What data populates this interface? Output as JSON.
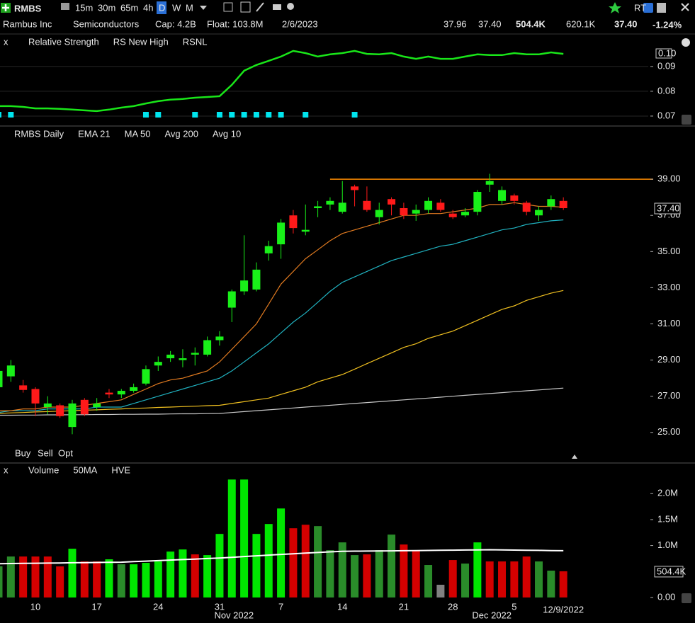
{
  "toolbar": {
    "symbol": "RMBS",
    "intervals": [
      "15m",
      "30m",
      "65m",
      "4h",
      "D",
      "W",
      "M"
    ],
    "active_interval": 4,
    "rt": "RT"
  },
  "info": {
    "name": "Rambus Inc",
    "sector": "Semiconductors",
    "cap": "Cap: 4.2B",
    "float": "Float: 103.8M",
    "date": "2/6/2023",
    "fields": [
      "37.96",
      "37.40",
      "504.4K",
      "620.1K"
    ],
    "last": "37.40",
    "change": "-1.24%"
  },
  "order_buttons": [
    "Buy",
    "Sell",
    "Opt"
  ],
  "chart_data": [
    {
      "type": "line",
      "close_label": "x",
      "series": [
        {
          "name": "Relative Strength",
          "color": "#19e619",
          "values": [
            0.074,
            0.074,
            0.0737,
            0.0731,
            0.0731,
            0.0729,
            0.0726,
            0.0723,
            0.072,
            0.0726,
            0.0734,
            0.074,
            0.0751,
            0.076,
            0.0766,
            0.0769,
            0.0774,
            0.0777,
            0.078,
            0.0826,
            0.0883,
            0.0906,
            0.0923,
            0.094,
            0.0963,
            0.0954,
            0.094,
            0.0949,
            0.0954,
            0.0963,
            0.0951,
            0.0949,
            0.0954,
            0.094,
            0.0931,
            0.094,
            0.0931,
            0.0931,
            0.094,
            0.0949,
            0.0946,
            0.0946,
            0.0954,
            0.0949,
            0.0949,
            0.0957,
            0.0951
          ]
        }
      ],
      "markers": {
        "name": "RS New High",
        "color": "#00e5ee",
        "indices": [
          0,
          1,
          12,
          13,
          16,
          18,
          19,
          20,
          21,
          22,
          23,
          25,
          29
        ]
      },
      "indicator": {
        "name": "RSNL",
        "color": "#e03030"
      },
      "last_label": "0.10",
      "ylim": [
        0.0677,
        0.0974
      ],
      "yticks": [
        0.09,
        0.08,
        0.07
      ]
    },
    {
      "type": "candlestick",
      "title": "RMBS Daily",
      "open": [
        27.5,
        28.1,
        27.6,
        27.4,
        26.4,
        26.5,
        25.3,
        26.8,
        26.4,
        27.2,
        27.1,
        27.3,
        27.7,
        28.7,
        29.1,
        29.0,
        29.3,
        29.3,
        30.1,
        31.9,
        32.8,
        32.9,
        34.9,
        35.4,
        37.0,
        36.1,
        37.4,
        37.6,
        37.2,
        38.6,
        37.8,
        36.9,
        37.9,
        37.4,
        37.1,
        37.3,
        37.7,
        37.1,
        37.0,
        37.2,
        38.7,
        37.8,
        38.1,
        37.7,
        37.0,
        37.5,
        37.8
      ],
      "high": [
        28.6,
        29.0,
        27.9,
        27.5,
        27.0,
        26.6,
        26.8,
        26.9,
        26.9,
        27.4,
        27.4,
        27.7,
        28.7,
        29.2,
        29.5,
        29.6,
        29.7,
        30.3,
        30.6,
        32.9,
        35.9,
        34.4,
        35.6,
        36.8,
        37.3,
        37.6,
        37.8,
        38.0,
        38.9,
        38.7,
        38.6,
        37.7,
        38.0,
        37.7,
        37.6,
        38.0,
        37.9,
        37.3,
        37.4,
        38.4,
        39.3,
        38.6,
        38.2,
        37.8,
        37.5,
        38.1,
        38.0
      ],
      "low": [
        27.3,
        27.8,
        27.2,
        25.9,
        26.0,
        25.8,
        24.9,
        25.9,
        26.2,
        26.9,
        26.9,
        27.2,
        27.6,
        28.4,
        28.9,
        28.6,
        28.7,
        29.2,
        29.8,
        31.1,
        32.6,
        32.8,
        34.5,
        34.6,
        36.0,
        35.9,
        36.9,
        37.3,
        37.1,
        37.5,
        37.2,
        36.5,
        37.0,
        36.8,
        36.7,
        37.1,
        37.2,
        36.8,
        36.9,
        37.0,
        38.3,
        37.6,
        37.6,
        37.0,
        36.7,
        37.3,
        37.3
      ],
      "close": [
        28.4,
        28.7,
        27.35,
        26.6,
        26.6,
        25.9,
        26.6,
        26.0,
        26.6,
        27.1,
        27.3,
        27.5,
        28.5,
        28.9,
        29.3,
        29.1,
        29.4,
        30.1,
        30.3,
        32.8,
        33.4,
        34.0,
        35.3,
        36.6,
        36.3,
        36.2,
        37.5,
        37.8,
        37.7,
        38.4,
        37.3,
        37.3,
        37.6,
        37.0,
        37.3,
        37.8,
        37.3,
        36.9,
        37.2,
        38.3,
        38.9,
        38.4,
        37.8,
        37.2,
        37.3,
        37.9,
        37.4
      ],
      "up_color": "#19f019",
      "down_color": "#ff1a1a",
      "series": [
        {
          "name": "EMA 21",
          "color": "#20b2c0",
          "values": [
            26.1,
            26.2,
            26.2,
            26.2,
            26.3,
            26.3,
            26.3,
            26.3,
            26.4,
            26.4,
            26.4,
            26.6,
            26.8,
            27.0,
            27.2,
            27.4,
            27.6,
            27.8,
            28.0,
            28.4,
            28.9,
            29.4,
            29.9,
            30.5,
            31.1,
            31.6,
            32.2,
            32.8,
            33.3,
            33.6,
            33.9,
            34.2,
            34.5,
            34.7,
            34.9,
            35.1,
            35.3,
            35.4,
            35.6,
            35.8,
            36.0,
            36.2,
            36.3,
            36.5,
            36.6,
            36.7,
            36.75
          ]
        },
        {
          "name": "MA 50",
          "color": "#f0c020",
          "values": [
            26.05,
            26.08,
            26.1,
            26.13,
            26.15,
            26.18,
            26.2,
            26.23,
            26.25,
            26.28,
            26.3,
            26.33,
            26.35,
            26.38,
            26.4,
            26.43,
            26.45,
            26.48,
            26.5,
            26.6,
            26.7,
            26.8,
            26.9,
            27.1,
            27.3,
            27.5,
            27.8,
            28.0,
            28.2,
            28.5,
            28.8,
            29.1,
            29.4,
            29.7,
            29.9,
            30.2,
            30.4,
            30.6,
            30.9,
            31.2,
            31.5,
            31.8,
            32.0,
            32.3,
            32.5,
            32.7,
            32.85
          ]
        },
        {
          "name": "Avg 200",
          "color": "#c8c8c8",
          "values": [
            25.95,
            25.95,
            25.96,
            25.96,
            25.97,
            25.97,
            25.98,
            25.98,
            25.99,
            25.99,
            26.0,
            26.0,
            26.01,
            26.01,
            26.02,
            26.03,
            26.03,
            26.04,
            26.05,
            26.1,
            26.15,
            26.2,
            26.25,
            26.3,
            26.35,
            26.4,
            26.45,
            26.5,
            26.55,
            26.6,
            26.65,
            26.7,
            26.75,
            26.8,
            26.85,
            26.9,
            26.95,
            27.0,
            27.05,
            27.1,
            27.15,
            27.2,
            27.25,
            27.3,
            27.35,
            27.4,
            27.45
          ]
        },
        {
          "name": "Avg 10",
          "color": "#e07a20",
          "values": [
            26.2,
            26.2,
            26.3,
            26.3,
            26.4,
            26.4,
            26.4,
            26.5,
            26.6,
            26.7,
            26.8,
            27.1,
            27.4,
            27.7,
            27.9,
            28.0,
            28.2,
            28.4,
            28.9,
            29.6,
            30.3,
            31.0,
            32.1,
            33.2,
            33.9,
            34.6,
            35.1,
            35.6,
            36.0,
            36.2,
            36.4,
            36.6,
            36.8,
            37.0,
            37.0,
            37.1,
            37.1,
            37.2,
            37.3,
            37.4,
            37.6,
            37.6,
            37.7,
            37.6,
            37.5,
            37.5,
            37.45
          ]
        }
      ],
      "hline": {
        "value": 39.0,
        "color": "#ff8c00",
        "from_index": 27
      },
      "last_label": "37.40",
      "ylim": [
        24.17,
        41.08
      ],
      "yticks": [
        {
          "value": 39,
          "label": "39.00"
        },
        {
          "value": 37,
          "label": "37.00"
        },
        {
          "value": 35,
          "label": "35.00"
        },
        {
          "value": 33,
          "label": "33.00"
        },
        {
          "value": 31,
          "label": "31.00"
        },
        {
          "value": 29,
          "label": "29.00"
        },
        {
          "value": 27,
          "label": "27.00"
        },
        {
          "value": 25,
          "label": "25.00"
        }
      ]
    },
    {
      "type": "bar",
      "close_label": "x",
      "indicator": "HVE",
      "categories": [
        null,
        null,
        null,
        "10",
        null,
        null,
        null,
        null,
        "17",
        null,
        null,
        null,
        null,
        "24",
        null,
        null,
        null,
        null,
        "31",
        null,
        null,
        null,
        null,
        "7",
        null,
        null,
        null,
        null,
        "14",
        null,
        null,
        null,
        null,
        "21",
        null,
        null,
        null,
        "28",
        null,
        null,
        null,
        null,
        "5",
        null,
        null,
        null,
        null
      ],
      "month_labels": [
        {
          "label": "Nov 2022",
          "index": 19
        },
        {
          "label": "Dec 2022",
          "index": 40
        }
      ],
      "last_date": "12/9/2022",
      "series": [
        {
          "name": "Volume",
          "values": [
            600000,
            789000,
            789000,
            789000,
            789000,
            598000,
            939000,
            694000,
            694000,
            735000,
            639000,
            639000,
            667000,
            694000,
            884000,
            925000,
            830000,
            816000,
            1224000,
            2272000,
            2272000,
            1224000,
            1415000,
            1714000,
            1333000,
            1401000,
            1374000,
            912000,
            1061000,
            816000,
            830000,
            912000,
            1211000,
            1020000,
            898000,
            626000,
            245000,
            721000,
            653000,
            1061000,
            694000,
            694000,
            694000,
            789000,
            694000,
            517000,
            504400
          ],
          "colors": [
            "#2a8c2a",
            "#2a8c2a",
            "#d40000",
            "#d40000",
            "#d40000",
            "#d40000",
            "#00e600",
            "#d40000",
            "#d40000",
            "#00e600",
            "#2a8c2a",
            "#00e600",
            "#00e600",
            "#00e600",
            "#00e600",
            "#00e600",
            "#d40000",
            "#00e600",
            "#00e600",
            "#00e600",
            "#00e600",
            "#00e600",
            "#00e600",
            "#00e600",
            "#d40000",
            "#d40000",
            "#2a8c2a",
            "#2a8c2a",
            "#2a8c2a",
            "#2a8c2a",
            "#d40000",
            "#2a8c2a",
            "#2a8c2a",
            "#d40000",
            "#d40000",
            "#2a8c2a",
            "#808080",
            "#d40000",
            "#2a8c2a",
            "#00e600",
            "#d40000",
            "#d40000",
            "#d40000",
            "#d40000",
            "#2a8c2a",
            "#2a8c2a",
            "#d40000"
          ]
        },
        {
          "name": "50MA",
          "color": "#ffffff",
          "values": [
            650000,
            653000,
            656000,
            659000,
            662000,
            665000,
            668000,
            671000,
            674000,
            677000,
            680000,
            690000,
            700000,
            710000,
            720000,
            730000,
            740000,
            750000,
            760000,
            774000,
            788000,
            802000,
            816000,
            830000,
            842000,
            854000,
            866000,
            878000,
            890000,
            892000,
            894000,
            896000,
            898000,
            900000,
            903000,
            906000,
            909000,
            912000,
            914000,
            917000,
            920000,
            917000,
            913000,
            910000,
            907000,
            903000,
            900000
          ]
        }
      ],
      "last_label": "504.4K",
      "ylim": [
        -110000,
        2290000
      ],
      "yticks": [
        {
          "value": 2000000,
          "label": "2.0M"
        },
        {
          "value": 1500000,
          "label": "1.5M"
        },
        {
          "value": 1000000,
          "label": "1.0M"
        },
        {
          "value": 0,
          "label": "0.00"
        }
      ]
    }
  ]
}
